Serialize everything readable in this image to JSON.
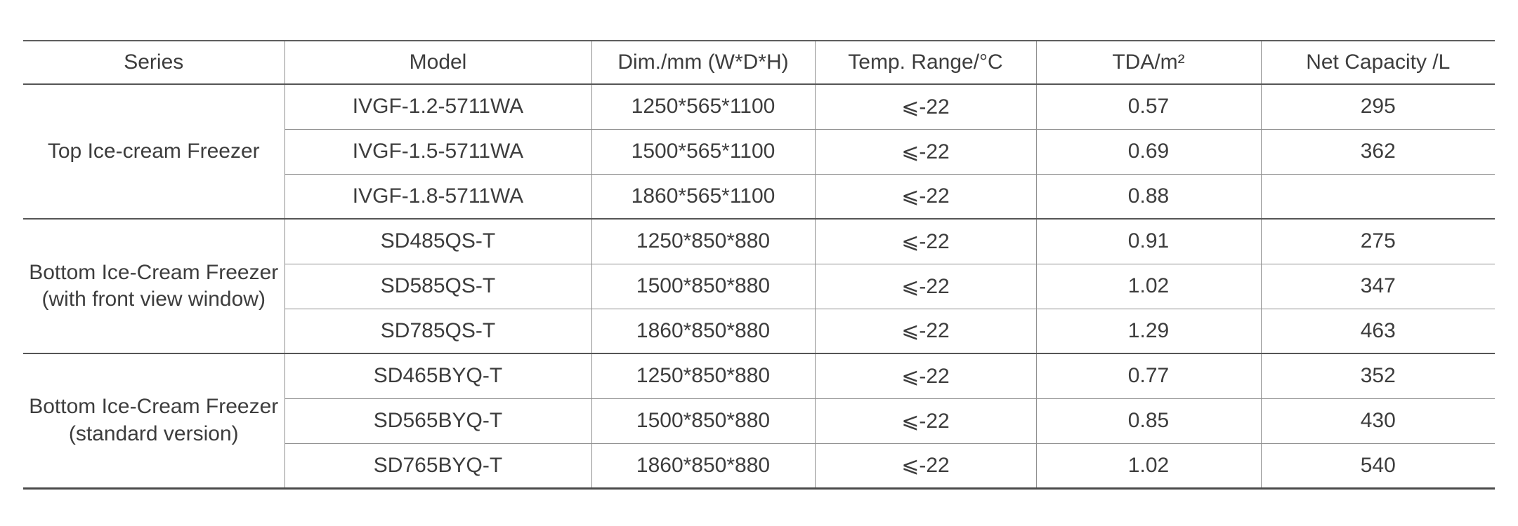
{
  "table": {
    "columns": [
      "Series",
      "Model",
      "Dim./mm (W*D*H)",
      "Temp. Range/°C",
      "TDA/m²",
      "Net Capacity /L"
    ],
    "groups": [
      {
        "series_line1": "Top Ice-cream Freezer",
        "series_line2": "",
        "rows": [
          {
            "model": "IVGF-1.2-5711WA",
            "dim": "1250*565*1100",
            "temp": "⩽-22",
            "tda": "0.57",
            "capacity": "295"
          },
          {
            "model": "IVGF-1.5-5711WA",
            "dim": "1500*565*1100",
            "temp": "⩽-22",
            "tda": "0.69",
            "capacity": "362"
          },
          {
            "model": "IVGF-1.8-5711WA",
            "dim": "1860*565*1100",
            "temp": "⩽-22",
            "tda": "0.88",
            "capacity": ""
          }
        ]
      },
      {
        "series_line1": "Bottom Ice-Cream Freezer",
        "series_line2": "(with front view window)",
        "rows": [
          {
            "model": "SD485QS-T",
            "dim": "1250*850*880",
            "temp": "⩽-22",
            "tda": "0.91",
            "capacity": "275"
          },
          {
            "model": "SD585QS-T",
            "dim": "1500*850*880",
            "temp": "⩽-22",
            "tda": "1.02",
            "capacity": "347"
          },
          {
            "model": "SD785QS-T",
            "dim": "1860*850*880",
            "temp": "⩽-22",
            "tda": "1.29",
            "capacity": "463"
          }
        ]
      },
      {
        "series_line1": "Bottom Ice-Cream Freezer",
        "series_line2": "(standard version)",
        "rows": [
          {
            "model": "SD465BYQ-T",
            "dim": "1250*850*880",
            "temp": "⩽-22",
            "tda": "0.77",
            "capacity": "352"
          },
          {
            "model": "SD565BYQ-T",
            "dim": "1500*850*880",
            "temp": "⩽-22",
            "tda": "0.85",
            "capacity": "430"
          },
          {
            "model": "SD765BYQ-T",
            "dim": "1860*850*880",
            "temp": "⩽-22",
            "tda": "1.02",
            "capacity": "540"
          }
        ]
      }
    ]
  },
  "colors": {
    "text": "#3d3d3d",
    "grid_light": "#8f8f8f",
    "grid_dark": "#555555",
    "background": "#ffffff"
  }
}
